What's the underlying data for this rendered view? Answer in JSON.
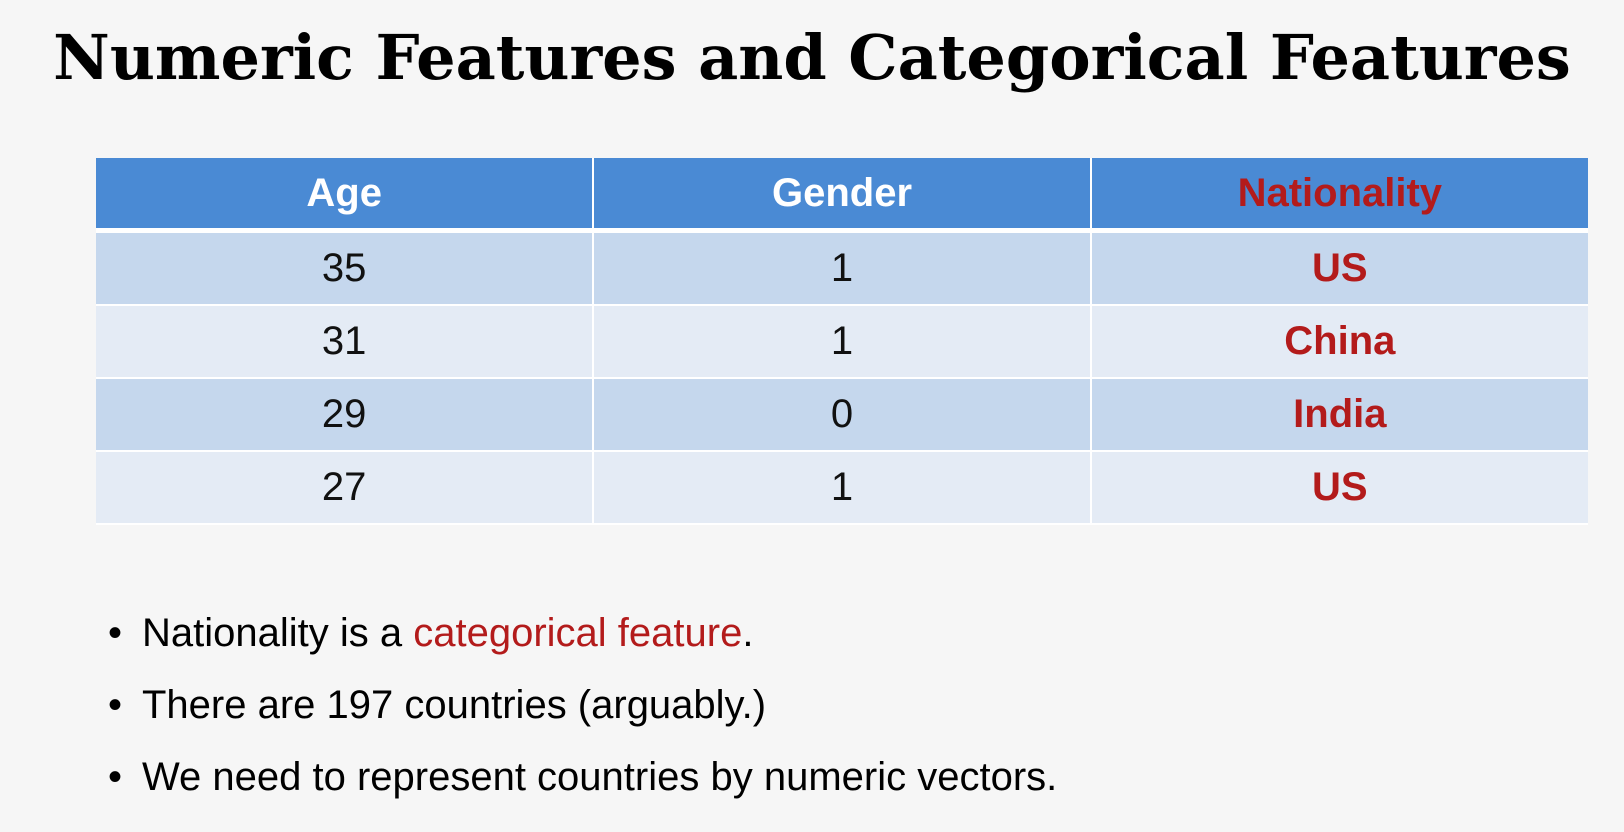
{
  "slide": {
    "title": "Numeric Features and Categorical Features"
  },
  "table": {
    "headers": [
      "Age",
      "Gender",
      "Nationality"
    ],
    "rows": [
      {
        "age": "35",
        "gender": "1",
        "nationality": "US"
      },
      {
        "age": "31",
        "gender": "1",
        "nationality": "China"
      },
      {
        "age": "29",
        "gender": "0",
        "nationality": "India"
      },
      {
        "age": "27",
        "gender": "1",
        "nationality": "US"
      }
    ]
  },
  "bullets": [
    {
      "before": "Nationality is a ",
      "highlight": "categorical feature",
      "after": "."
    },
    {
      "text": "There are 197 countries (arguably.)"
    },
    {
      "text": "We need to represent countries by numeric vectors."
    }
  ],
  "colors": {
    "header_bg": "#4a8ad4",
    "row_dark": "#c5d7ed",
    "row_light": "#e4ebf5",
    "accent_red": "#b31b1b"
  }
}
